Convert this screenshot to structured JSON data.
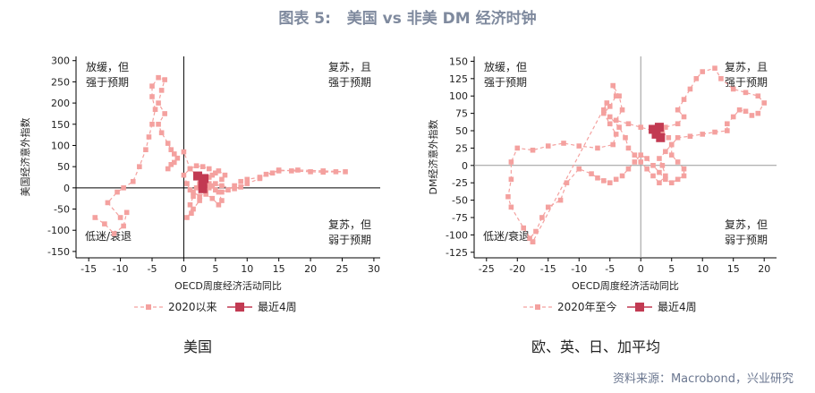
{
  "title": {
    "label": "图表 5:",
    "text": "美国 vs 非美 DM 经济时钟"
  },
  "source": "资料来源：Macrobond，兴业研究",
  "colors": {
    "series_2020": "#f4a19f",
    "recent": "#c23a52",
    "axis": "#000000",
    "zero_left": "#000000",
    "zero_right": "#999999"
  },
  "chart_data": [
    {
      "id": "us",
      "type": "scatter",
      "caption": "美国",
      "xlabel": "OECD周度经济活动同比",
      "ylabel": "美国经济意外指数",
      "xlim": [
        -17,
        31
      ],
      "ylim": [
        -165,
        310
      ],
      "xticks": [
        -15,
        -10,
        -5,
        0,
        5,
        10,
        15,
        20,
        25,
        30
      ],
      "yticks": [
        -150,
        -100,
        -50,
        0,
        50,
        100,
        150,
        200,
        250,
        300
      ],
      "quadrant_labels": {
        "top_left": [
          "放缓，但",
          "强于预期"
        ],
        "top_right": [
          "复苏，且",
          "强于预期"
        ],
        "bottom_left": [
          "低迷/衰退"
        ],
        "bottom_right": [
          "复苏，但",
          "弱于预期"
        ]
      },
      "legend": [
        "2020以来",
        "最近4周"
      ],
      "series": [
        {
          "name": "2020以来",
          "points": [
            [
              -14,
              -70
            ],
            [
              -12.5,
              -85
            ],
            [
              -11,
              -108
            ],
            [
              -9.5,
              -90
            ],
            [
              -9,
              -58
            ],
            [
              -10,
              -70
            ],
            [
              -12,
              -35
            ],
            [
              -10.5,
              -10
            ],
            [
              -9.5,
              0
            ],
            [
              -8,
              15
            ],
            [
              -7,
              50
            ],
            [
              -6,
              90
            ],
            [
              -5.5,
              120
            ],
            [
              -5,
              150
            ],
            [
              -4.5,
              185
            ],
            [
              -5,
              215
            ],
            [
              -5,
              240
            ],
            [
              -4,
              260
            ],
            [
              -3,
              255
            ],
            [
              -3.5,
              230
            ],
            [
              -4,
              200
            ],
            [
              -3,
              175
            ],
            [
              -4,
              150
            ],
            [
              -3.5,
              130
            ],
            [
              -2.5,
              105
            ],
            [
              -2,
              90
            ],
            [
              -1.5,
              80
            ],
            [
              -1,
              70
            ],
            [
              -2,
              55
            ],
            [
              -2.5,
              45
            ],
            [
              -1.5,
              60
            ],
            [
              0,
              85
            ],
            [
              1,
              45
            ],
            [
              2,
              30
            ],
            [
              3,
              15
            ],
            [
              4,
              5
            ],
            [
              5,
              -5
            ],
            [
              6,
              -10
            ],
            [
              7,
              -5
            ],
            [
              8,
              5
            ],
            [
              9,
              15
            ],
            [
              10,
              20
            ],
            [
              12,
              25
            ],
            [
              14,
              35
            ],
            [
              15,
              42
            ],
            [
              17,
              40
            ],
            [
              20,
              38
            ],
            [
              22,
              37
            ],
            [
              24,
              38
            ],
            [
              25.5,
              38
            ],
            [
              22,
              40
            ],
            [
              18,
              42
            ],
            [
              15,
              40
            ],
            [
              13,
              32
            ],
            [
              12,
              22
            ],
            [
              10,
              10
            ],
            [
              9,
              2
            ],
            [
              8,
              -2
            ],
            [
              6,
              5
            ],
            [
              4,
              10
            ],
            [
              3,
              20
            ],
            [
              4,
              25
            ],
            [
              5,
              35
            ],
            [
              4,
              45
            ],
            [
              3,
              50
            ],
            [
              2,
              52
            ],
            [
              1,
              45
            ],
            [
              0,
              30
            ],
            [
              0.5,
              10
            ],
            [
              1,
              -5
            ],
            [
              1.5,
              -20
            ],
            [
              1,
              -40
            ],
            [
              1.2,
              -60
            ],
            [
              0.5,
              -70
            ],
            [
              1.5,
              -50
            ],
            [
              2.5,
              -30
            ],
            [
              3.5,
              -15
            ],
            [
              4.5,
              -25
            ],
            [
              5.5,
              -40
            ],
            [
              6,
              -30
            ],
            [
              5.5,
              -10
            ],
            [
              4.5,
              5
            ],
            [
              3.5,
              15
            ],
            [
              2.5,
              10
            ],
            [
              2,
              0
            ],
            [
              1.5,
              -10
            ],
            [
              2.5,
              -20
            ],
            [
              3.5,
              -10
            ],
            [
              4,
              0
            ],
            [
              5,
              10
            ],
            [
              6,
              20
            ],
            [
              6.5,
              30
            ],
            [
              5.5,
              40
            ],
            [
              4.5,
              30
            ],
            [
              3.5,
              20
            ],
            [
              3,
              25
            ],
            [
              2.5,
              30
            ]
          ]
        },
        {
          "name": "最近4周",
          "points": [
            [
              2.2,
              28
            ],
            [
              3.2,
              22
            ],
            [
              3.0,
              10
            ],
            [
              3.0,
              -2
            ]
          ]
        }
      ]
    },
    {
      "id": "dm",
      "type": "scatter",
      "caption": "欧、英、日、加平均",
      "xlabel": "OECD周度经济活动同比",
      "ylabel": "DM经济意外指数",
      "xlim": [
        -27,
        22
      ],
      "ylim": [
        -133,
        157
      ],
      "xticks": [
        -25,
        -20,
        -15,
        -10,
        -5,
        0,
        5,
        10,
        15,
        20
      ],
      "yticks": [
        -125,
        -100,
        -75,
        -50,
        -25,
        0,
        25,
        50,
        75,
        100,
        125,
        150
      ],
      "quadrant_labels": {
        "top_left": [
          "放缓，但",
          "强于预期"
        ],
        "top_right": [
          "复苏，且",
          "强于预期"
        ],
        "bottom_left": [
          "低迷/衰退"
        ],
        "bottom_right": [
          "复苏，但",
          "弱于预期"
        ]
      },
      "legend": [
        "2020年至今",
        "最近4周"
      ],
      "series": [
        {
          "name": "2020年至今",
          "points": [
            [
              -17.5,
              -110
            ],
            [
              -19,
              -90
            ],
            [
              -21,
              -60
            ],
            [
              -21.5,
              -45
            ],
            [
              -21,
              -20
            ],
            [
              -21,
              5
            ],
            [
              -20,
              25
            ],
            [
              -17.5,
              22
            ],
            [
              -15,
              28
            ],
            [
              -12.5,
              32
            ],
            [
              -10,
              28
            ],
            [
              -7,
              25
            ],
            [
              -4.5,
              30
            ],
            [
              -4,
              45
            ],
            [
              -5,
              60
            ],
            [
              -6,
              75
            ],
            [
              -5,
              85
            ],
            [
              -4,
              100
            ],
            [
              -4.5,
              115
            ],
            [
              -3.5,
              100
            ],
            [
              -3,
              80
            ],
            [
              -4,
              65
            ],
            [
              -2,
              60
            ],
            [
              0,
              55
            ],
            [
              2,
              50
            ],
            [
              4,
              55
            ],
            [
              6,
              60
            ],
            [
              7,
              70
            ],
            [
              6,
              80
            ],
            [
              7,
              95
            ],
            [
              8,
              110
            ],
            [
              9,
              125
            ],
            [
              10,
              135
            ],
            [
              12,
              140
            ],
            [
              13,
              125
            ],
            [
              15,
              110
            ],
            [
              17,
              105
            ],
            [
              19,
              100
            ],
            [
              20,
              90
            ],
            [
              19,
              75
            ],
            [
              18,
              72
            ],
            [
              17,
              78
            ],
            [
              16,
              80
            ],
            [
              15,
              70
            ],
            [
              14,
              60
            ],
            [
              14,
              50
            ],
            [
              12,
              48
            ],
            [
              10,
              45
            ],
            [
              8,
              42
            ],
            [
              6,
              40
            ],
            [
              5,
              30
            ],
            [
              5,
              15
            ],
            [
              6,
              5
            ],
            [
              7,
              -5
            ],
            [
              7,
              -15
            ],
            [
              6,
              -20
            ],
            [
              5,
              -25
            ],
            [
              4,
              -20
            ],
            [
              3,
              -10
            ],
            [
              2,
              0
            ],
            [
              1,
              10
            ],
            [
              0,
              15
            ],
            [
              -1,
              5
            ],
            [
              -2,
              -5
            ],
            [
              -3,
              -15
            ],
            [
              -4,
              -20
            ],
            [
              -5,
              -25
            ],
            [
              -6,
              -22
            ],
            [
              -7,
              -18
            ],
            [
              -8,
              -12
            ],
            [
              -10,
              -5
            ],
            [
              -12,
              -25
            ],
            [
              -13,
              -50
            ],
            [
              -15,
              -60
            ],
            [
              -16,
              -75
            ],
            [
              -17,
              -95
            ],
            [
              -18,
              -105
            ],
            [
              -17.5,
              -110
            ],
            [
              -5.5,
              90
            ],
            [
              -6,
              80
            ],
            [
              -5,
              70
            ],
            [
              -3.5,
              55
            ],
            [
              -2.5,
              40
            ],
            [
              -2,
              25
            ],
            [
              -1,
              15
            ],
            [
              0,
              5
            ],
            [
              1,
              -5
            ],
            [
              2,
              -15
            ],
            [
              3,
              -25
            ],
            [
              4,
              -15
            ],
            [
              3.5,
              0
            ],
            [
              3,
              10
            ],
            [
              4,
              20
            ],
            [
              5,
              30
            ],
            [
              4.5,
              40
            ],
            [
              3.5,
              48
            ],
            [
              2.5,
              50
            ]
          ]
        },
        {
          "name": "最近4周",
          "points": [
            [
              2.0,
              52
            ],
            [
              3.0,
              55
            ],
            [
              2.5,
              45
            ],
            [
              3.2,
              40
            ]
          ]
        }
      ]
    }
  ]
}
